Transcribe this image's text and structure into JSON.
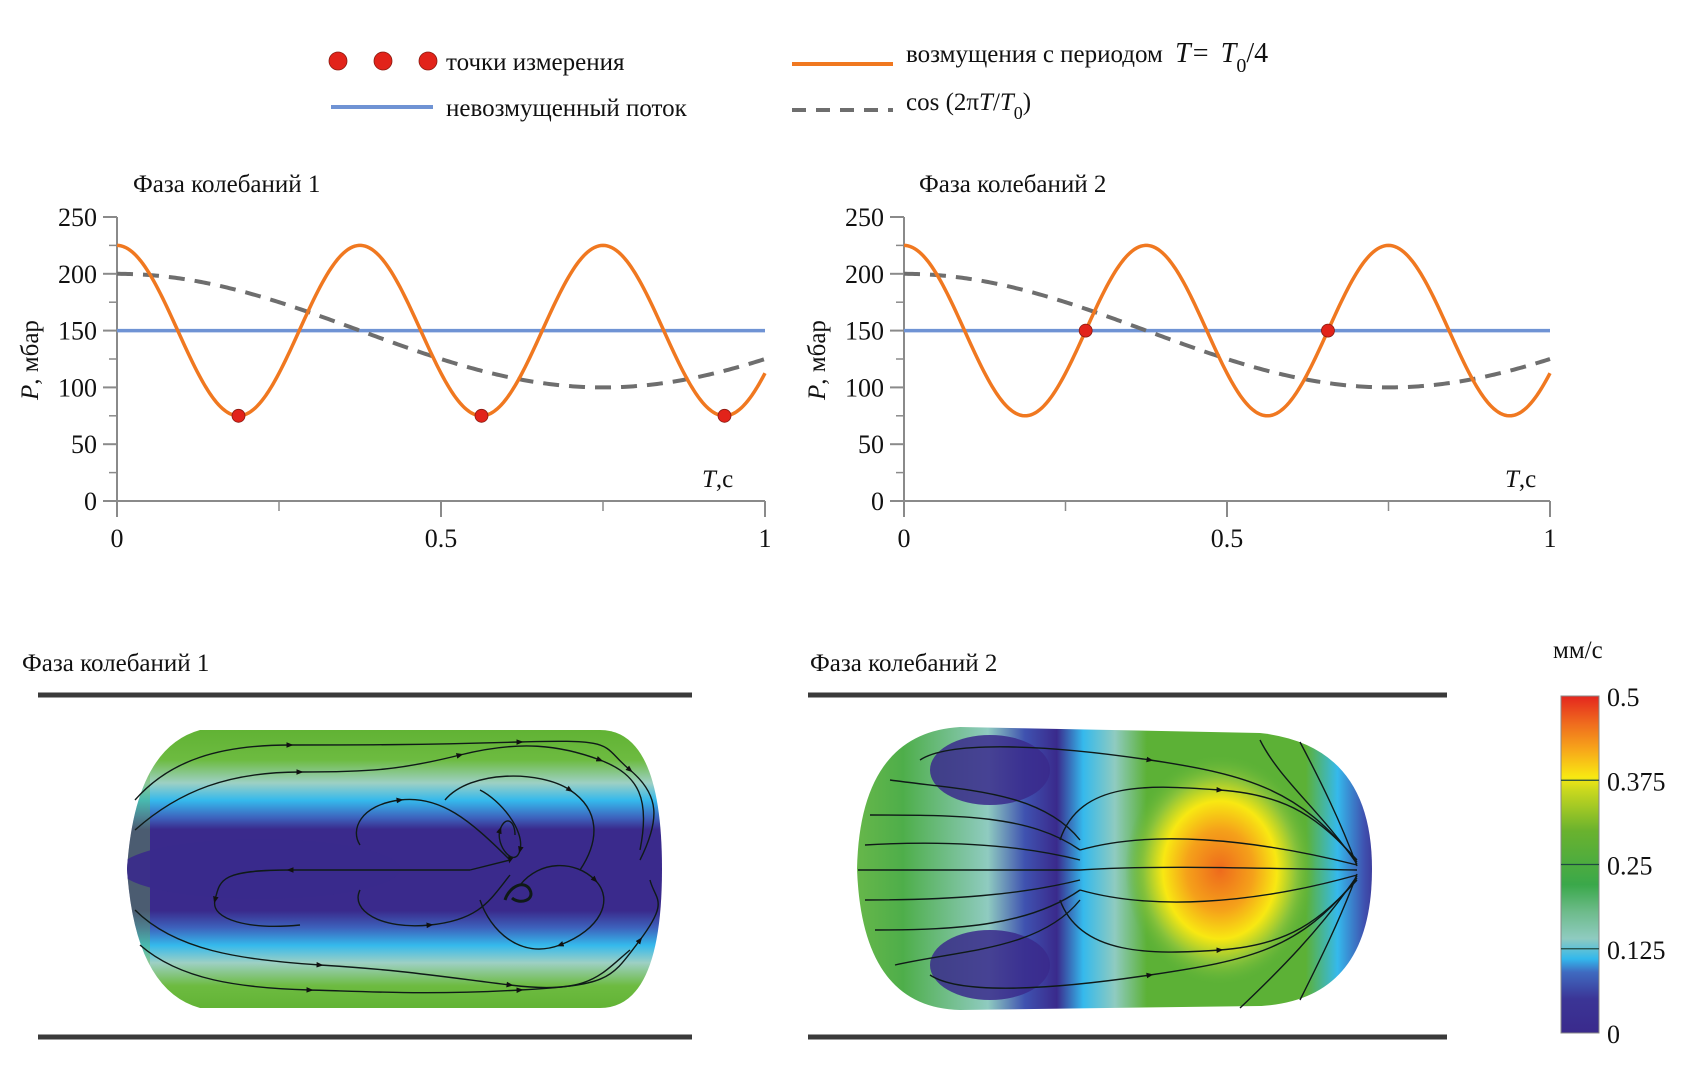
{
  "legend": {
    "points_label": "точки измерения",
    "unperturbed_label": "невозмущенный поток",
    "perturbation_label": "возмущения с периодом",
    "perturbation_formula_T": "T",
    "perturbation_formula_eq": "=",
    "perturbation_formula_T0": "T",
    "perturbation_formula_sub": "0",
    "perturbation_formula_div": "/4",
    "cos_label_prefix": "cos (2π",
    "cos_label_T": "T",
    "cos_label_slash": "/",
    "cos_label_T0": "T",
    "cos_label_sub": "0",
    "cos_label_suffix": ")"
  },
  "colors": {
    "perturbation": "#f07820",
    "unperturbed": "#6f93d4",
    "cosine": "#6e6e6e",
    "point": "#e2231a",
    "axis": "#8a8a8a",
    "wall": "#3a3a3a"
  },
  "chart_data": [
    {
      "type": "line",
      "title": "Фаза колебаний 1",
      "xlabel_var": "T",
      "xlabel_unit": ",с",
      "ylabel_var": "P",
      "ylabel_unit": ", мбар",
      "xlim": [
        0,
        1
      ],
      "ylim": [
        0,
        250
      ],
      "xticks": [
        0,
        0.5,
        1
      ],
      "xtick_labels": [
        "0",
        "0.5",
        "1"
      ],
      "x_minor_ticks": [
        0.25,
        0.75
      ],
      "yticks": [
        0,
        50,
        100,
        150,
        200,
        250
      ],
      "ytick_labels": [
        "0",
        "50",
        "100",
        "150",
        "200",
        "250"
      ],
      "y_minor_ticks": [
        25,
        75,
        125,
        175,
        225
      ],
      "grid": false,
      "series": [
        {
          "name": "возмущения с периодом T = T0/4",
          "kind": "cosine",
          "mean": 150,
          "amplitude": 75,
          "period": 0.375,
          "style": "solid",
          "color_key": "perturbation"
        },
        {
          "name": "невозмущенный поток",
          "kind": "constant",
          "value": 150,
          "style": "solid",
          "color_key": "unperturbed"
        },
        {
          "name": "cos(2πT/T0)",
          "kind": "cosine",
          "mean": 150,
          "amplitude": 50,
          "period": 1.5,
          "style": "dashed",
          "color_key": "cosine"
        }
      ],
      "points": [
        {
          "x": 0.1875,
          "y": 75
        },
        {
          "x": 0.5625,
          "y": 75
        },
        {
          "x": 0.9375,
          "y": 75
        }
      ]
    },
    {
      "type": "line",
      "title": "Фаза колебаний 2",
      "xlabel_var": "T",
      "xlabel_unit": ",с",
      "ylabel_var": "P",
      "ylabel_unit": ", мбар",
      "xlim": [
        0,
        1
      ],
      "ylim": [
        0,
        250
      ],
      "xticks": [
        0,
        0.5,
        1
      ],
      "xtick_labels": [
        "0",
        "0.5",
        "1"
      ],
      "x_minor_ticks": [
        0.25,
        0.75
      ],
      "yticks": [
        0,
        50,
        100,
        150,
        200,
        250
      ],
      "ytick_labels": [
        "0",
        "50",
        "100",
        "150",
        "200",
        "250"
      ],
      "y_minor_ticks": [
        25,
        75,
        125,
        175,
        225
      ],
      "grid": false,
      "series": [
        {
          "name": "возмущения с периодом T = T0/4",
          "kind": "cosine",
          "mean": 150,
          "amplitude": 75,
          "period": 0.375,
          "style": "solid",
          "color_key": "perturbation"
        },
        {
          "name": "невозмущенный поток",
          "kind": "constant",
          "value": 150,
          "style": "solid",
          "color_key": "unperturbed"
        },
        {
          "name": "cos(2πT/T0)",
          "kind": "cosine",
          "mean": 150,
          "amplitude": 50,
          "period": 1.5,
          "style": "dashed",
          "color_key": "cosine"
        }
      ],
      "points": [
        {
          "x": 0.28125,
          "y": 150
        },
        {
          "x": 0.65625,
          "y": 150
        }
      ]
    },
    {
      "type": "heatmap",
      "title": "Фаза колебаний 1",
      "description": "velocity magnitude field with streamlines; low-velocity core (≈0) along centerline, ≈0.25 near walls, two counter-rotating vortices on the right",
      "colorbar_ref": "colorbar"
    },
    {
      "type": "heatmap",
      "title": "Фаза колебаний 2",
      "description": "velocity magnitude field with streamlines; maximum ≈0.45 mm/s in the center-right, flow diverging from a line at center-left and converging to a sink at the right edge",
      "colorbar_ref": "colorbar"
    }
  ],
  "flow_panels": [
    {
      "title": "Фаза колебаний 1"
    },
    {
      "title": "Фаза колебаний 2"
    }
  ],
  "colorbar": {
    "unit": "мм/с",
    "range": [
      0,
      0.5
    ],
    "ticks": [
      0.5,
      0.375,
      0.25,
      0.125,
      0
    ],
    "tick_labels": [
      "0.5",
      "0.375",
      "0.25",
      "0.125",
      "0"
    ],
    "stops": [
      {
        "value": 0.0,
        "color": "#3a2a8c"
      },
      {
        "value": 0.05,
        "color": "#3b3596"
      },
      {
        "value": 0.09,
        "color": "#3f6ac0"
      },
      {
        "value": 0.11,
        "color": "#33b8ec"
      },
      {
        "value": 0.14,
        "color": "#8fcbc0"
      },
      {
        "value": 0.18,
        "color": "#6dbb8a"
      },
      {
        "value": 0.22,
        "color": "#3aa84a"
      },
      {
        "value": 0.3,
        "color": "#6ab22e"
      },
      {
        "value": 0.36,
        "color": "#c9d81e"
      },
      {
        "value": 0.38,
        "color": "#f8e812"
      },
      {
        "value": 0.42,
        "color": "#f7a71a"
      },
      {
        "value": 0.46,
        "color": "#ef6a1e"
      },
      {
        "value": 0.5,
        "color": "#e4261e"
      }
    ]
  }
}
